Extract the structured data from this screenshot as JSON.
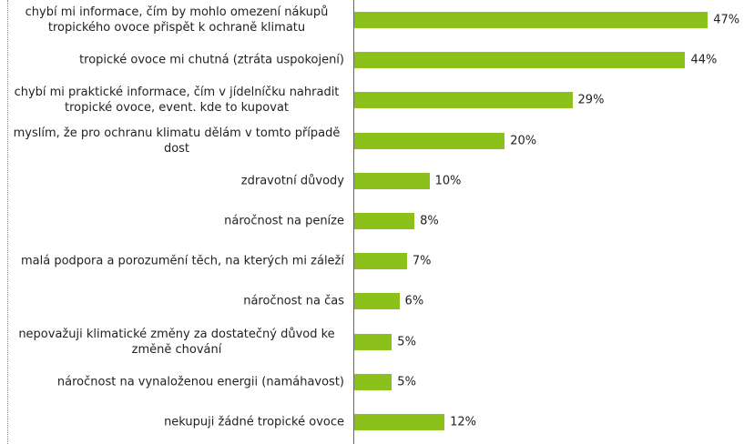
{
  "chart_data": {
    "type": "bar",
    "orientation": "horizontal",
    "categories": [
      "chybí mi informace, čím by mohlo omezení nákupů tropického ovoce přispět k ochraně klimatu",
      "tropické ovoce mi chutná (ztráta uspokojení)",
      "chybí mi praktické informace, čím v jídelníčku nahradit tropické ovoce, event. kde to kupovat",
      "myslím, že pro ochranu klimatu dělám v tomto případě dost",
      "zdravotní důvody",
      "náročnost na peníze",
      "malá podpora a porozumění těch, na kterých mi záleží",
      "náročnost na čas",
      "nepovažuji klimatické změny za dostatečný důvod ke změně chování",
      "náročnost na vynaloženou energii (namáhavost)",
      "nekupuji žádné tropické ovoce"
    ],
    "values": [
      47,
      44,
      29,
      20,
      10,
      8,
      7,
      6,
      5,
      5,
      12
    ],
    "value_labels": [
      "47%",
      "44%",
      "29%",
      "20%",
      "10%",
      "8%",
      "7%",
      "6%",
      "5%",
      "5%",
      "12%"
    ],
    "color": "#8cc11c"
  }
}
